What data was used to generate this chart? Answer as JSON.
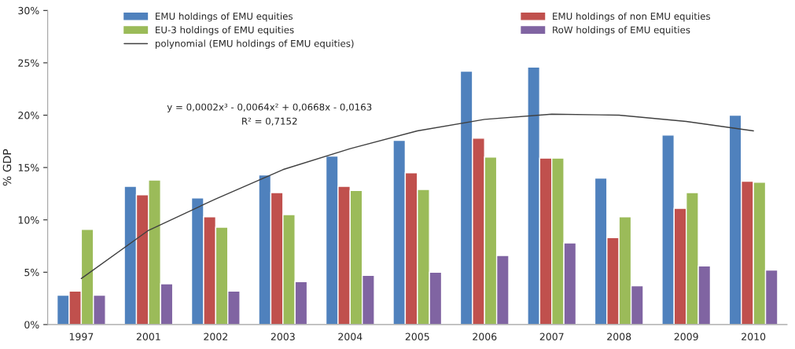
{
  "chart_data": {
    "type": "bar",
    "ylabel": "% GDP",
    "categories": [
      "1997",
      "2001",
      "2002",
      "2003",
      "2004",
      "2005",
      "2006",
      "2007",
      "2008",
      "2009",
      "2010"
    ],
    "series": [
      {
        "name": "EMU holdings of EMU equities",
        "color": "#4f81bd",
        "values": [
          2.8,
          13.2,
          12.1,
          14.3,
          16.1,
          17.6,
          24.2,
          24.6,
          14.0,
          18.1,
          20.0
        ]
      },
      {
        "name": "EMU holdings of non EMU equities",
        "color": "#c0504d",
        "values": [
          3.2,
          12.4,
          10.3,
          12.6,
          13.2,
          14.5,
          17.8,
          15.9,
          8.3,
          11.1,
          13.7
        ]
      },
      {
        "name": "EU-3 holdings of EMU equities",
        "color": "#9bbb59",
        "values": [
          9.1,
          13.8,
          9.3,
          10.5,
          12.8,
          12.9,
          16.0,
          15.9,
          10.3,
          12.6,
          13.6
        ]
      },
      {
        "name": "RoW holdings of EMU equities",
        "color": "#8064a2",
        "values": [
          2.8,
          3.9,
          3.2,
          4.1,
          4.7,
          5.0,
          6.6,
          7.8,
          3.7,
          5.6,
          5.2
        ]
      },
      {
        "name": "polynomial (EMU holdings of EMU equities)",
        "type": "line",
        "color": "#404040",
        "values": [
          4.4,
          9.0,
          12.0,
          14.8,
          16.8,
          18.5,
          19.6,
          20.1,
          20.0,
          19.4,
          18.5
        ]
      }
    ],
    "ylim": [
      0,
      30
    ],
    "yticks": [
      {
        "value": 0,
        "label": "0%"
      },
      {
        "value": 5,
        "label": "5%"
      },
      {
        "value": 10,
        "label": "10%"
      },
      {
        "value": 15,
        "label": "15%"
      },
      {
        "value": 20,
        "label": "20%"
      },
      {
        "value": 25,
        "label": "25%"
      },
      {
        "value": 30,
        "label": "30%"
      }
    ],
    "annotations": [
      "y = 0,0002x³ - 0,0064x² + 0,0668x - 0,0163",
      "R² = 0,7152"
    ],
    "grid": false,
    "legend": "top",
    "marker": "none"
  }
}
